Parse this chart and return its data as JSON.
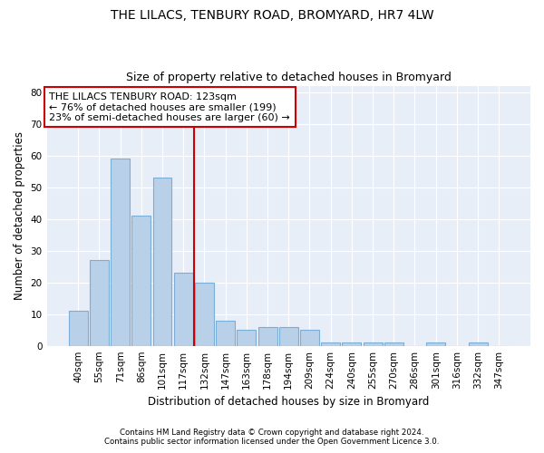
{
  "title": "THE LILACS, TENBURY ROAD, BROMYARD, HR7 4LW",
  "subtitle": "Size of property relative to detached houses in Bromyard",
  "xlabel": "Distribution of detached houses by size in Bromyard",
  "ylabel": "Number of detached properties",
  "categories": [
    "40sqm",
    "55sqm",
    "71sqm",
    "86sqm",
    "101sqm",
    "117sqm",
    "132sqm",
    "147sqm",
    "163sqm",
    "178sqm",
    "194sqm",
    "209sqm",
    "224sqm",
    "240sqm",
    "255sqm",
    "270sqm",
    "286sqm",
    "301sqm",
    "316sqm",
    "332sqm",
    "347sqm"
  ],
  "values": [
    11,
    27,
    59,
    41,
    53,
    23,
    20,
    8,
    5,
    6,
    6,
    5,
    1,
    1,
    1,
    1,
    0,
    1,
    0,
    1,
    0
  ],
  "bar_color": "#b8d0e8",
  "bar_edge_color": "#7aaed6",
  "property_index": 5,
  "property_label": "THE LILACS TENBURY ROAD: 123sqm",
  "annotation_line1": "← 76% of detached houses are smaller (199)",
  "annotation_line2": "23% of semi-detached houses are larger (60) →",
  "annotation_box_color": "#ffffff",
  "annotation_box_edge": "#cc0000",
  "vline_color": "#cc0000",
  "ylim": [
    0,
    82
  ],
  "yticks": [
    0,
    10,
    20,
    30,
    40,
    50,
    60,
    70,
    80
  ],
  "bg_color": "#e8eef8",
  "grid_color": "#ffffff",
  "fig_bg_color": "#ffffff",
  "footer1": "Contains HM Land Registry data © Crown copyright and database right 2024.",
  "footer2": "Contains public sector information licensed under the Open Government Licence 3.0."
}
